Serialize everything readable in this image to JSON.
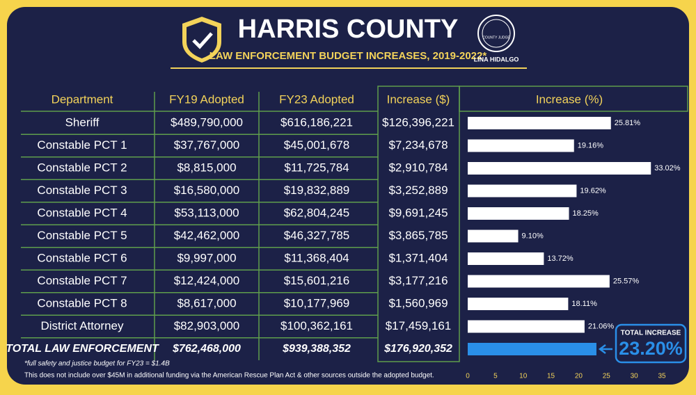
{
  "header": {
    "title": "HARRIS COUNTY",
    "subtitle": "LAW ENFORCEMENT BUDGET INCREASES, 2019-2022*",
    "seal_text": "COUNTY JUDGE",
    "seal_name": "LINA HIDALGO"
  },
  "table": {
    "headers": [
      "Department",
      "FY19 Adopted",
      "FY23 Adopted",
      "Increase ($)",
      "Increase (%)"
    ],
    "rows": [
      [
        "Sheriff",
        "$489,790,000",
        "$616,186,221",
        "$126,396,221"
      ],
      [
        "Constable PCT 1",
        "$37,767,000",
        "$45,001,678",
        "$7,234,678"
      ],
      [
        "Constable PCT 2",
        "$8,815,000",
        "$11,725,784",
        "$2,910,784"
      ],
      [
        "Constable PCT 3",
        "$16,580,000",
        "$19,832,889",
        "$3,252,889"
      ],
      [
        "Constable PCT 4",
        "$53,113,000",
        "$62,804,245",
        "$9,691,245"
      ],
      [
        "Constable PCT 5",
        "$42,462,000",
        "$46,327,785",
        "$3,865,785"
      ],
      [
        "Constable PCT 6",
        "$9,997,000",
        "$11,368,404",
        "$1,371,404"
      ],
      [
        "Constable PCT 7",
        "$12,424,000",
        "$15,601,216",
        "$3,177,216"
      ],
      [
        "Constable PCT 8",
        "$8,617,000",
        "$10,177,969",
        "$1,560,969"
      ],
      [
        "District Attorney",
        "$82,903,000",
        "$100,362,161",
        "$17,459,161"
      ]
    ],
    "total": [
      "TOTAL LAW ENFORCEMENT",
      "$762,468,000",
      "$939,388,352",
      "$176,920,352"
    ]
  },
  "chart_data": {
    "type": "bar",
    "orientation": "horizontal",
    "color": "#ffffff",
    "values": [
      25.81,
      19.16,
      33.02,
      19.62,
      18.25,
      9.1,
      13.72,
      25.57,
      18.11,
      21.06
    ],
    "value_labels": [
      "25.81%",
      "19.16%",
      "33.02%",
      "19.62%",
      "18.25%",
      "9.10%",
      "13.72%",
      "25.57%",
      "18.11%",
      "21.06%"
    ],
    "total": {
      "value": 23.2,
      "color": "#2a8fe8",
      "label_title": "TOTAL INCREASE",
      "value_label": "23.20%"
    },
    "xlim": [
      0,
      35.5
    ],
    "xticks": [
      0,
      5,
      10,
      15,
      20,
      25,
      30,
      35
    ]
  },
  "footnotes": [
    "*full safety and justice budget for FY23 = $1.4B",
    "This does not include over $45M in additional funding via the American Rescue Plan Act & other sources outside the adopted budget."
  ]
}
